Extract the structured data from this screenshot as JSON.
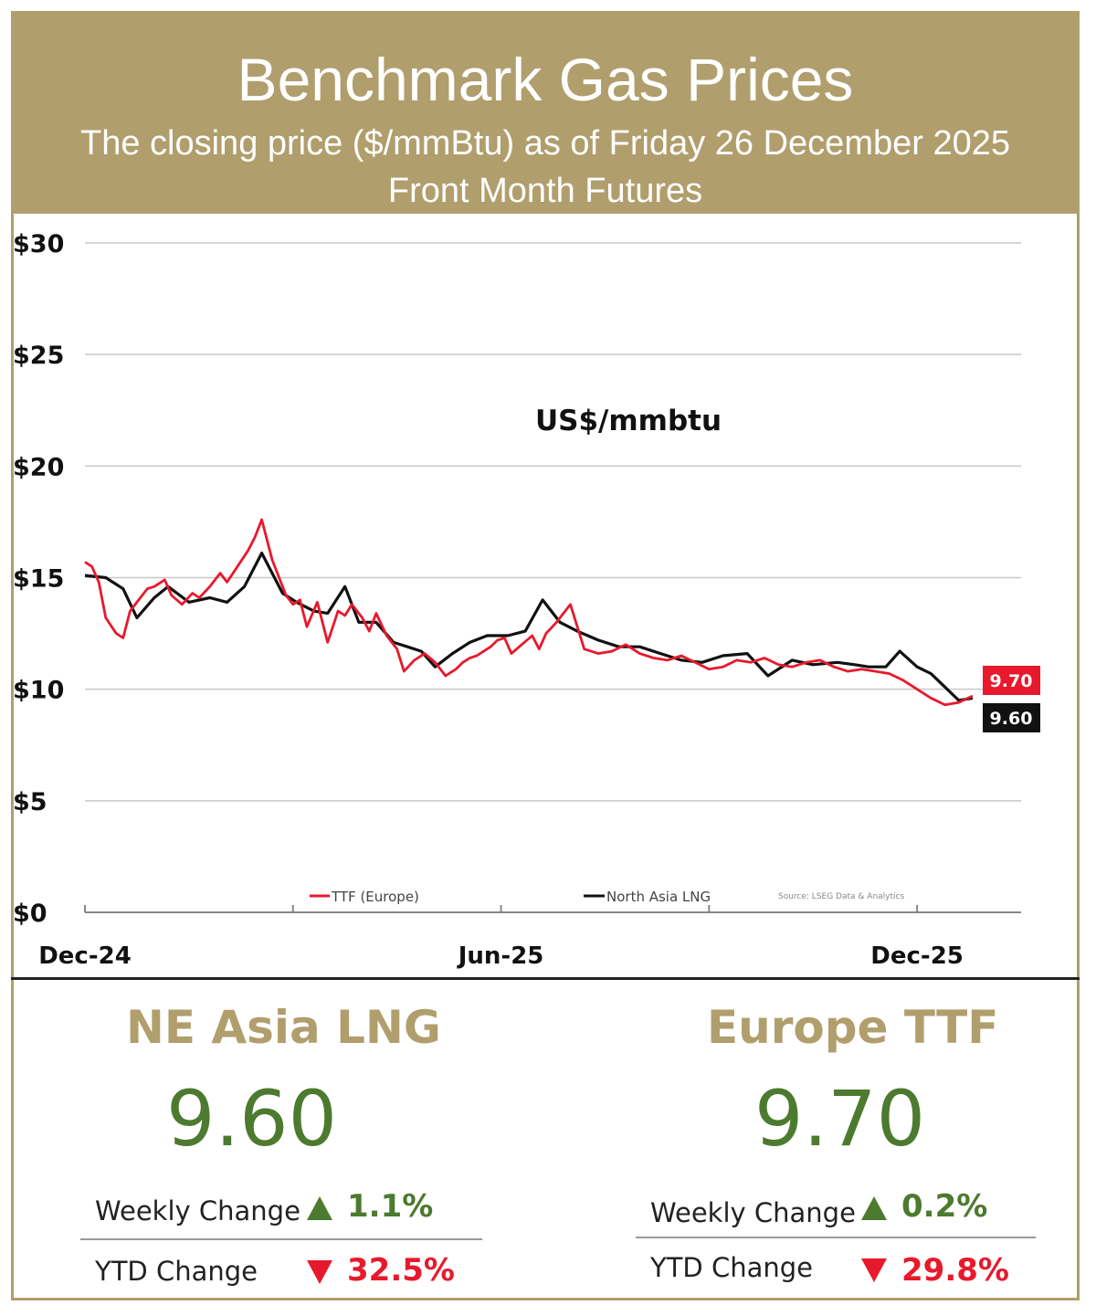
{
  "header": {
    "title": "Benchmark Gas Prices",
    "subtitle": "The closing price ($/mmBtu) as of Friday 26 December 2025",
    "subtitle2": "Front Month  Futures"
  },
  "colors": {
    "accent": "#b19e6d",
    "ttf": "#e8192c",
    "lng": "#111111",
    "positive": "#4c7a2e",
    "negative": "#e8192c"
  },
  "chart_data": {
    "type": "line",
    "title": "US$/mmbtu",
    "ylim": [
      0,
      30
    ],
    "yticks": [
      "$0",
      "$5",
      "$10",
      "$15",
      "$20",
      "$25",
      "$30"
    ],
    "ytick_values": [
      0,
      5,
      10,
      15,
      20,
      25,
      30
    ],
    "xticks": [
      "Dec-24",
      "Jun-25",
      "Dec-25"
    ],
    "xtick_positions": [
      0,
      6,
      12
    ],
    "x_unit": "months since Dec-24",
    "grid": true,
    "legend_position": "bottom",
    "source": "Source: LSEG Data & Analytics",
    "series": [
      {
        "name": "TTF (Europe)",
        "color": "#e8192c",
        "end_label": "9.70",
        "x": [
          0,
          0.1,
          0.2,
          0.3,
          0.45,
          0.55,
          0.65,
          0.75,
          0.9,
          1.0,
          1.15,
          1.25,
          1.4,
          1.55,
          1.65,
          1.8,
          1.95,
          2.05,
          2.2,
          2.35,
          2.45,
          2.55,
          2.7,
          2.8,
          2.9,
          3.0,
          3.1,
          3.2,
          3.35,
          3.5,
          3.65,
          3.75,
          3.85,
          4.0,
          4.1,
          4.2,
          4.35,
          4.5,
          4.6,
          4.75,
          4.9,
          5.05,
          5.2,
          5.35,
          5.45,
          5.55,
          5.65,
          5.75,
          5.85,
          5.95,
          6.05,
          6.15,
          6.3,
          6.45,
          6.55,
          6.65,
          6.8,
          7.0,
          7.2,
          7.4,
          7.6,
          7.8,
          8.0,
          8.2,
          8.4,
          8.6,
          8.8,
          9.0,
          9.2,
          9.4,
          9.6,
          9.8,
          10.0,
          10.2,
          10.4,
          10.6,
          10.8,
          11.0,
          11.2,
          11.4,
          11.6,
          11.8,
          12.0,
          12.2,
          12.4,
          12.6,
          12.8
        ],
        "y": [
          15.7,
          15.5,
          14.8,
          13.2,
          12.5,
          12.3,
          13.5,
          13.9,
          14.5,
          14.6,
          14.9,
          14.2,
          13.8,
          14.3,
          14.1,
          14.6,
          15.2,
          14.8,
          15.5,
          16.2,
          16.8,
          17.6,
          15.8,
          15.0,
          14.2,
          13.8,
          14.0,
          12.8,
          13.9,
          12.1,
          13.5,
          13.3,
          13.8,
          13.2,
          12.6,
          13.4,
          12.4,
          11.8,
          10.8,
          11.3,
          11.6,
          11.2,
          10.6,
          10.9,
          11.2,
          11.4,
          11.5,
          11.7,
          11.9,
          12.2,
          12.3,
          11.6,
          12.0,
          12.4,
          11.8,
          12.5,
          13.0,
          13.8,
          11.8,
          11.6,
          11.7,
          12.0,
          11.6,
          11.4,
          11.3,
          11.5,
          11.2,
          10.9,
          11.0,
          11.3,
          11.2,
          11.4,
          11.1,
          11.0,
          11.2,
          11.3,
          11.0,
          10.8,
          10.9,
          10.8,
          10.7,
          10.4,
          10.0,
          9.6,
          9.3,
          9.4,
          9.7
        ]
      },
      {
        "name": "North Asia LNG",
        "color": "#111111",
        "end_label": "9.60",
        "x": [
          0,
          0.3,
          0.55,
          0.75,
          1.0,
          1.2,
          1.5,
          1.8,
          2.05,
          2.3,
          2.55,
          2.85,
          3.05,
          3.3,
          3.5,
          3.75,
          3.95,
          4.2,
          4.45,
          4.65,
          4.85,
          5.05,
          5.3,
          5.55,
          5.8,
          6.1,
          6.35,
          6.6,
          6.85,
          7.1,
          7.4,
          7.7,
          8.0,
          8.3,
          8.6,
          8.9,
          9.2,
          9.55,
          9.85,
          10.2,
          10.5,
          10.85,
          11.1,
          11.3,
          11.55,
          11.75,
          12.0,
          12.2,
          12.4,
          12.6,
          12.8
        ],
        "y": [
          15.1,
          15.0,
          14.5,
          13.2,
          14.1,
          14.6,
          13.9,
          14.1,
          13.9,
          14.6,
          16.1,
          14.3,
          13.9,
          13.5,
          13.4,
          14.6,
          13.0,
          13.0,
          12.1,
          11.9,
          11.7,
          11.0,
          11.6,
          12.1,
          12.4,
          12.4,
          12.6,
          14.0,
          13.0,
          12.6,
          12.2,
          11.9,
          11.9,
          11.6,
          11.3,
          11.2,
          11.5,
          11.6,
          10.6,
          11.3,
          11.1,
          11.2,
          11.1,
          11.0,
          11.0,
          11.7,
          11.0,
          10.7,
          10.1,
          9.5,
          9.6
        ]
      }
    ]
  },
  "panels": {
    "lng": {
      "title": "NE Asia LNG",
      "value": "9.60",
      "weekly_label": "Weekly Change",
      "weekly_value": "1.1%",
      "weekly_direction": "up",
      "ytd_label": "YTD Change",
      "ytd_value": "32.5%",
      "ytd_direction": "down"
    },
    "ttf": {
      "title": "Europe TTF",
      "value": "9.70",
      "weekly_label": "Weekly Change",
      "weekly_value": "0.2%",
      "weekly_direction": "up",
      "ytd_label": "YTD Change",
      "ytd_value": "29.8%",
      "ytd_direction": "down"
    }
  }
}
